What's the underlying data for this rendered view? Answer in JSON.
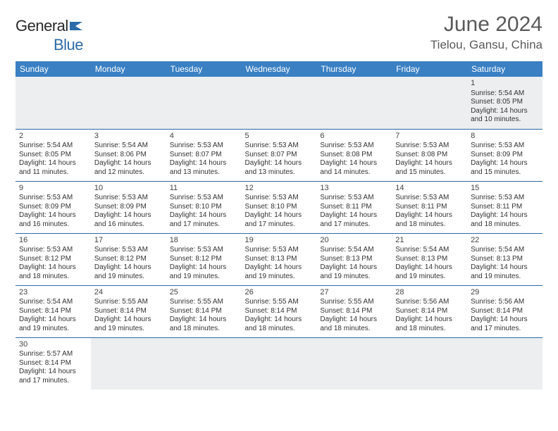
{
  "brand": {
    "name_part1": "General",
    "name_part2": "Blue",
    "icon_color": "#2d6ca8"
  },
  "header": {
    "title": "June 2024",
    "location": "Tielou, Gansu, China"
  },
  "style": {
    "header_bg": "#3a80c3",
    "header_text": "#ffffff",
    "row_border": "#2d6ca8",
    "firstrow_bg": "#eceeef",
    "body_fontsize": 10,
    "daynum_fontsize": 11,
    "title_fontsize": 30,
    "location_fontsize": 17
  },
  "weekdays": [
    "Sunday",
    "Monday",
    "Tuesday",
    "Wednesday",
    "Thursday",
    "Friday",
    "Saturday"
  ],
  "weeks": [
    [
      null,
      null,
      null,
      null,
      null,
      null,
      {
        "n": "1",
        "sr": "Sunrise: 5:54 AM",
        "ss": "Sunset: 8:05 PM",
        "dl1": "Daylight: 14 hours",
        "dl2": "and 10 minutes."
      }
    ],
    [
      {
        "n": "2",
        "sr": "Sunrise: 5:54 AM",
        "ss": "Sunset: 8:05 PM",
        "dl1": "Daylight: 14 hours",
        "dl2": "and 11 minutes."
      },
      {
        "n": "3",
        "sr": "Sunrise: 5:54 AM",
        "ss": "Sunset: 8:06 PM",
        "dl1": "Daylight: 14 hours",
        "dl2": "and 12 minutes."
      },
      {
        "n": "4",
        "sr": "Sunrise: 5:53 AM",
        "ss": "Sunset: 8:07 PM",
        "dl1": "Daylight: 14 hours",
        "dl2": "and 13 minutes."
      },
      {
        "n": "5",
        "sr": "Sunrise: 5:53 AM",
        "ss": "Sunset: 8:07 PM",
        "dl1": "Daylight: 14 hours",
        "dl2": "and 13 minutes."
      },
      {
        "n": "6",
        "sr": "Sunrise: 5:53 AM",
        "ss": "Sunset: 8:08 PM",
        "dl1": "Daylight: 14 hours",
        "dl2": "and 14 minutes."
      },
      {
        "n": "7",
        "sr": "Sunrise: 5:53 AM",
        "ss": "Sunset: 8:08 PM",
        "dl1": "Daylight: 14 hours",
        "dl2": "and 15 minutes."
      },
      {
        "n": "8",
        "sr": "Sunrise: 5:53 AM",
        "ss": "Sunset: 8:09 PM",
        "dl1": "Daylight: 14 hours",
        "dl2": "and 15 minutes."
      }
    ],
    [
      {
        "n": "9",
        "sr": "Sunrise: 5:53 AM",
        "ss": "Sunset: 8:09 PM",
        "dl1": "Daylight: 14 hours",
        "dl2": "and 16 minutes."
      },
      {
        "n": "10",
        "sr": "Sunrise: 5:53 AM",
        "ss": "Sunset: 8:09 PM",
        "dl1": "Daylight: 14 hours",
        "dl2": "and 16 minutes."
      },
      {
        "n": "11",
        "sr": "Sunrise: 5:53 AM",
        "ss": "Sunset: 8:10 PM",
        "dl1": "Daylight: 14 hours",
        "dl2": "and 17 minutes."
      },
      {
        "n": "12",
        "sr": "Sunrise: 5:53 AM",
        "ss": "Sunset: 8:10 PM",
        "dl1": "Daylight: 14 hours",
        "dl2": "and 17 minutes."
      },
      {
        "n": "13",
        "sr": "Sunrise: 5:53 AM",
        "ss": "Sunset: 8:11 PM",
        "dl1": "Daylight: 14 hours",
        "dl2": "and 17 minutes."
      },
      {
        "n": "14",
        "sr": "Sunrise: 5:53 AM",
        "ss": "Sunset: 8:11 PM",
        "dl1": "Daylight: 14 hours",
        "dl2": "and 18 minutes."
      },
      {
        "n": "15",
        "sr": "Sunrise: 5:53 AM",
        "ss": "Sunset: 8:11 PM",
        "dl1": "Daylight: 14 hours",
        "dl2": "and 18 minutes."
      }
    ],
    [
      {
        "n": "16",
        "sr": "Sunrise: 5:53 AM",
        "ss": "Sunset: 8:12 PM",
        "dl1": "Daylight: 14 hours",
        "dl2": "and 18 minutes."
      },
      {
        "n": "17",
        "sr": "Sunrise: 5:53 AM",
        "ss": "Sunset: 8:12 PM",
        "dl1": "Daylight: 14 hours",
        "dl2": "and 19 minutes."
      },
      {
        "n": "18",
        "sr": "Sunrise: 5:53 AM",
        "ss": "Sunset: 8:12 PM",
        "dl1": "Daylight: 14 hours",
        "dl2": "and 19 minutes."
      },
      {
        "n": "19",
        "sr": "Sunrise: 5:53 AM",
        "ss": "Sunset: 8:13 PM",
        "dl1": "Daylight: 14 hours",
        "dl2": "and 19 minutes."
      },
      {
        "n": "20",
        "sr": "Sunrise: 5:54 AM",
        "ss": "Sunset: 8:13 PM",
        "dl1": "Daylight: 14 hours",
        "dl2": "and 19 minutes."
      },
      {
        "n": "21",
        "sr": "Sunrise: 5:54 AM",
        "ss": "Sunset: 8:13 PM",
        "dl1": "Daylight: 14 hours",
        "dl2": "and 19 minutes."
      },
      {
        "n": "22",
        "sr": "Sunrise: 5:54 AM",
        "ss": "Sunset: 8:13 PM",
        "dl1": "Daylight: 14 hours",
        "dl2": "and 19 minutes."
      }
    ],
    [
      {
        "n": "23",
        "sr": "Sunrise: 5:54 AM",
        "ss": "Sunset: 8:14 PM",
        "dl1": "Daylight: 14 hours",
        "dl2": "and 19 minutes."
      },
      {
        "n": "24",
        "sr": "Sunrise: 5:55 AM",
        "ss": "Sunset: 8:14 PM",
        "dl1": "Daylight: 14 hours",
        "dl2": "and 19 minutes."
      },
      {
        "n": "25",
        "sr": "Sunrise: 5:55 AM",
        "ss": "Sunset: 8:14 PM",
        "dl1": "Daylight: 14 hours",
        "dl2": "and 18 minutes."
      },
      {
        "n": "26",
        "sr": "Sunrise: 5:55 AM",
        "ss": "Sunset: 8:14 PM",
        "dl1": "Daylight: 14 hours",
        "dl2": "and 18 minutes."
      },
      {
        "n": "27",
        "sr": "Sunrise: 5:55 AM",
        "ss": "Sunset: 8:14 PM",
        "dl1": "Daylight: 14 hours",
        "dl2": "and 18 minutes."
      },
      {
        "n": "28",
        "sr": "Sunrise: 5:56 AM",
        "ss": "Sunset: 8:14 PM",
        "dl1": "Daylight: 14 hours",
        "dl2": "and 18 minutes."
      },
      {
        "n": "29",
        "sr": "Sunrise: 5:56 AM",
        "ss": "Sunset: 8:14 PM",
        "dl1": "Daylight: 14 hours",
        "dl2": "and 17 minutes."
      }
    ],
    [
      {
        "n": "30",
        "sr": "Sunrise: 5:57 AM",
        "ss": "Sunset: 8:14 PM",
        "dl1": "Daylight: 14 hours",
        "dl2": "and 17 minutes."
      },
      null,
      null,
      null,
      null,
      null,
      null
    ]
  ]
}
